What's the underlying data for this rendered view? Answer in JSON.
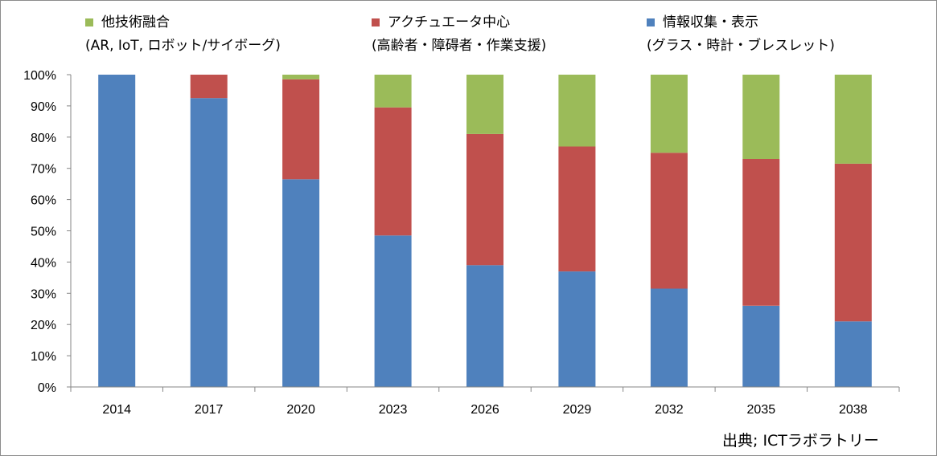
{
  "chart_data": {
    "type": "bar",
    "stacked": true,
    "percent": true,
    "categories": [
      "2014",
      "2017",
      "2020",
      "2023",
      "2026",
      "2029",
      "2032",
      "2035",
      "2038"
    ],
    "series": [
      {
        "name": "情報収集・表示",
        "name_line2": "(グラス・時計・ブレスレット)",
        "color": "#4f81bd",
        "values": [
          100,
          92.5,
          66.5,
          48.5,
          39,
          37,
          31.5,
          26,
          21
        ]
      },
      {
        "name": "アクチュエータ中心",
        "name_line2": "(高齢者・障碍者・作業支援)",
        "color": "#c0504d",
        "values": [
          0,
          7.5,
          32,
          41,
          42,
          40,
          43.5,
          47,
          50.5
        ]
      },
      {
        "name": "他技術融合",
        "name_line2": "(AR, IoT, ロボット/サイボーグ)",
        "color": "#9bbb59",
        "values": [
          0,
          0,
          1.5,
          10.5,
          19,
          23,
          25,
          27,
          28.5
        ]
      }
    ],
    "y_ticks": [
      "0%",
      "10%",
      "20%",
      "30%",
      "40%",
      "50%",
      "60%",
      "70%",
      "80%",
      "90%",
      "100%"
    ],
    "ylim": [
      0,
      100
    ],
    "grid": false,
    "legend_position": "top",
    "title": "",
    "xlabel": "",
    "ylabel": ""
  },
  "source_label": "出典; ICTラボラトリー"
}
